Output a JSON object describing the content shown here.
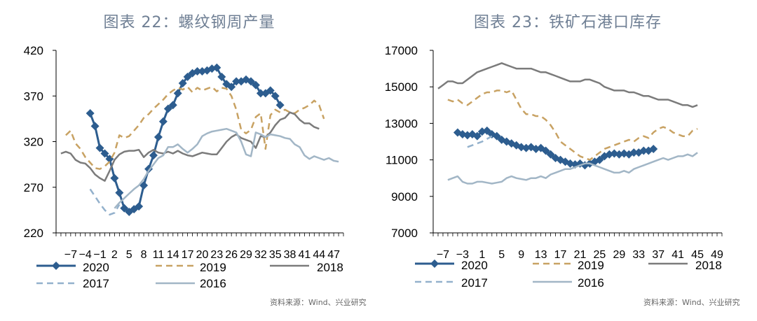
{
  "chart_data": [
    {
      "type": "line",
      "title": "图表 22：螺纹钢周产量",
      "source": "资料来源：Wind、兴业研究",
      "ylim": [
        220,
        420
      ],
      "yticks": [
        220,
        270,
        320,
        370,
        420
      ],
      "xlim": [
        -10,
        49
      ],
      "xticks": [
        -7,
        -4,
        -1,
        2,
        5,
        8,
        11,
        14,
        17,
        20,
        23,
        26,
        29,
        32,
        35,
        38,
        41,
        44,
        47
      ],
      "xtick_labels": [
        "−7",
        "−4",
        "−1",
        "2",
        "5",
        "8",
        "11",
        "14",
        "17",
        "20",
        "23",
        "26",
        "29",
        "32",
        "35",
        "38",
        "41",
        "44",
        "47"
      ],
      "legend_position": "bottom",
      "series": [
        {
          "name": "2020",
          "color": "#2d5d8f",
          "style": "solid-diamond",
          "x": [
            -3,
            -2,
            -1,
            0,
            1,
            2,
            3,
            4,
            5,
            6,
            7,
            8,
            9,
            10,
            11,
            12,
            13,
            14,
            15,
            16,
            17,
            18,
            19,
            20,
            21,
            22,
            23,
            24,
            25,
            26,
            27,
            28,
            29,
            30,
            31,
            32,
            33,
            34,
            35,
            36
          ],
          "y": [
            351,
            337,
            313,
            307,
            301,
            280,
            264,
            247,
            243,
            246,
            249,
            272,
            290,
            305,
            325,
            342,
            356,
            360,
            373,
            384,
            391,
            395,
            397,
            397,
            398,
            400,
            401,
            391,
            383,
            380,
            386,
            386,
            388,
            386,
            382,
            373,
            373,
            376,
            370,
            360
          ]
        },
        {
          "name": "2019",
          "color": "#c8a263",
          "style": "dashed",
          "x": [
            -8,
            -7,
            -6,
            -5,
            -4,
            -3,
            -2,
            -1,
            0,
            1,
            2,
            3,
            4,
            5,
            6,
            7,
            8,
            9,
            10,
            11,
            12,
            13,
            14,
            15,
            16,
            17,
            18,
            19,
            20,
            21,
            22,
            23,
            24,
            25,
            26,
            27,
            28,
            29,
            30,
            31,
            32,
            33,
            34,
            35,
            36,
            37,
            38,
            39,
            40,
            41,
            42,
            43,
            44,
            45
          ],
          "y": [
            327,
            332,
            318,
            312,
            303,
            297,
            291,
            290,
            293,
            298,
            308,
            327,
            324,
            326,
            332,
            338,
            346,
            350,
            356,
            361,
            366,
            372,
            376,
            379,
            377,
            380,
            374,
            379,
            376,
            378,
            380,
            375,
            379,
            378,
            370,
            355,
            333,
            329,
            333,
            347,
            351,
            312,
            349,
            355,
            352,
            355,
            352,
            351,
            355,
            357,
            360,
            365,
            360,
            345
          ]
        },
        {
          "name": "2018",
          "color": "#7b7b7b",
          "style": "solid",
          "x": [
            -9,
            -8,
            -7,
            -6,
            -5,
            -4,
            -3,
            -2,
            -1,
            0,
            1,
            2,
            3,
            4,
            5,
            6,
            7,
            8,
            9,
            10,
            11,
            12,
            13,
            14,
            15,
            16,
            17,
            18,
            19,
            20,
            21,
            22,
            23,
            24,
            25,
            26,
            27,
            28,
            29,
            30,
            31,
            32,
            33,
            34,
            35,
            36,
            37,
            38,
            39,
            40,
            41,
            42,
            43,
            44
          ],
          "y": [
            307,
            309,
            307,
            300,
            297,
            296,
            291,
            284,
            280,
            277,
            288,
            300,
            306,
            309,
            310,
            310,
            311,
            303,
            308,
            311,
            308,
            307,
            309,
            307,
            310,
            307,
            305,
            304,
            306,
            308,
            307,
            306,
            306,
            313,
            320,
            325,
            328,
            324,
            322,
            320,
            313,
            326,
            325,
            330,
            338,
            344,
            346,
            352,
            350,
            344,
            340,
            340,
            336,
            334
          ]
        },
        {
          "name": "2017",
          "color": "#93b1cc",
          "style": "dashed",
          "x": [
            -3,
            -2,
            -1,
            0,
            1,
            2,
            3
          ],
          "y": [
            268,
            260,
            252,
            245,
            240,
            242,
            251
          ]
        },
        {
          "name": "2016",
          "color": "#a2b6c6",
          "style": "solid",
          "x": [
            2,
            3,
            4,
            5,
            6,
            7,
            8,
            9,
            10,
            11,
            12,
            13,
            14,
            15,
            16,
            17,
            18,
            19,
            20,
            21,
            22,
            23,
            24,
            25,
            26,
            27,
            28,
            29,
            30,
            31,
            32,
            33,
            34,
            35,
            36,
            37,
            38,
            39,
            40,
            41,
            42,
            43,
            44,
            45,
            46,
            47,
            48
          ],
          "y": [
            247,
            253,
            258,
            263,
            268,
            272,
            279,
            288,
            295,
            302,
            305,
            314,
            314,
            317,
            312,
            308,
            312,
            317,
            326,
            329,
            331,
            332,
            333,
            334,
            332,
            330,
            320,
            306,
            304,
            330,
            328,
            325,
            328,
            327,
            326,
            324,
            323,
            317,
            314,
            305,
            301,
            304,
            302,
            300,
            302,
            299,
            298
          ]
        }
      ]
    },
    {
      "type": "line",
      "title": "图表 23：铁矿石港口库存",
      "source": "资料来源：Wind、兴业研究",
      "ylim": [
        7000,
        17000
      ],
      "yticks": [
        7000,
        9000,
        11000,
        13000,
        15000,
        17000
      ],
      "xlim": [
        -9,
        50
      ],
      "xticks": [
        -7,
        -3,
        1,
        5,
        9,
        13,
        17,
        21,
        25,
        29,
        33,
        37,
        41,
        45,
        49
      ],
      "xtick_labels": [
        "−7",
        "−3",
        "1",
        "5",
        "9",
        "13",
        "17",
        "21",
        "25",
        "29",
        "33",
        "37",
        "41",
        "45",
        "49"
      ],
      "legend_position": "bottom",
      "series": [
        {
          "name": "2020",
          "color": "#2d5d8f",
          "style": "solid-diamond",
          "x": [
            -4,
            -3,
            -2,
            -1,
            0,
            1,
            2,
            3,
            4,
            5,
            6,
            7,
            8,
            9,
            10,
            11,
            12,
            13,
            14,
            15,
            16,
            17,
            18,
            19,
            20,
            21,
            22,
            23,
            24,
            25,
            26,
            27,
            28,
            29,
            30,
            31,
            32,
            33,
            34,
            35,
            36
          ],
          "y": [
            12500,
            12400,
            12350,
            12400,
            12300,
            12550,
            12600,
            12400,
            12300,
            12100,
            12000,
            11900,
            11800,
            11700,
            11650,
            11700,
            11600,
            11650,
            11500,
            11300,
            11100,
            11000,
            10900,
            10800,
            10750,
            10800,
            10700,
            10800,
            10900,
            11000,
            11200,
            11300,
            11350,
            11300,
            11350,
            11300,
            11400,
            11400,
            11500,
            11500,
            11600
          ]
        },
        {
          "name": "2019",
          "color": "#c8a263",
          "style": "dashed",
          "x": [
            -6,
            -5,
            -4,
            -3,
            -2,
            -1,
            0,
            1,
            2,
            3,
            4,
            5,
            6,
            7,
            8,
            9,
            10,
            11,
            12,
            13,
            14,
            15,
            16,
            17,
            18,
            19,
            20,
            21,
            22,
            23,
            24,
            25,
            26,
            27,
            28,
            29,
            30,
            31,
            32,
            33,
            34,
            35,
            36,
            37,
            38,
            39,
            40,
            41,
            42,
            43,
            44,
            45
          ],
          "y": [
            14300,
            14200,
            14300,
            14100,
            14000,
            14200,
            14400,
            14600,
            14700,
            14700,
            14800,
            14800,
            14700,
            14800,
            14300,
            13800,
            13500,
            13500,
            13400,
            13400,
            13200,
            12900,
            12500,
            12000,
            11800,
            11600,
            11400,
            11200,
            11100,
            11000,
            11200,
            11400,
            11600,
            11700,
            11800,
            11900,
            12000,
            12100,
            12000,
            12200,
            12300,
            12200,
            12500,
            12700,
            12800,
            12700,
            12500,
            12400,
            12300,
            12300,
            12600,
            12700
          ]
        },
        {
          "name": "2018",
          "color": "#7b7b7b",
          "style": "solid",
          "x": [
            -8,
            -7,
            -6,
            -5,
            -4,
            -3,
            -2,
            -1,
            0,
            1,
            2,
            3,
            4,
            5,
            6,
            7,
            8,
            9,
            10,
            11,
            12,
            13,
            14,
            15,
            16,
            17,
            18,
            19,
            20,
            21,
            22,
            23,
            24,
            25,
            26,
            27,
            28,
            29,
            30,
            31,
            32,
            33,
            34,
            35,
            36,
            37,
            38,
            39,
            40,
            41,
            42,
            43,
            44,
            45
          ],
          "y": [
            14900,
            15100,
            15300,
            15300,
            15200,
            15200,
            15400,
            15600,
            15800,
            15900,
            16000,
            16100,
            16200,
            16300,
            16200,
            16100,
            16000,
            16000,
            16000,
            16000,
            15900,
            15800,
            15800,
            15700,
            15600,
            15500,
            15400,
            15300,
            15300,
            15300,
            15400,
            15400,
            15300,
            15200,
            15000,
            14900,
            14800,
            14800,
            14800,
            14700,
            14700,
            14600,
            14500,
            14500,
            14400,
            14300,
            14300,
            14300,
            14200,
            14100,
            14000,
            14000,
            13900,
            14000
          ]
        },
        {
          "name": "2017",
          "color": "#93b1cc",
          "style": "dashed",
          "x": [
            -2,
            -1,
            0,
            1,
            2,
            3
          ],
          "y": [
            11700,
            11800,
            11900,
            12000,
            12150,
            12300
          ]
        },
        {
          "name": "2016",
          "color": "#a2b6c6",
          "style": "solid",
          "x": [
            -6,
            -5,
            -4,
            -3,
            -2,
            -1,
            0,
            1,
            2,
            3,
            4,
            5,
            6,
            7,
            8,
            9,
            10,
            11,
            12,
            13,
            14,
            15,
            16,
            17,
            18,
            19,
            20,
            21,
            22,
            23,
            24,
            25,
            26,
            27,
            28,
            29,
            30,
            31,
            32,
            33,
            34,
            35,
            36,
            37,
            38,
            39,
            40,
            41,
            42,
            43,
            44,
            45
          ],
          "y": [
            9900,
            10000,
            10100,
            9800,
            9700,
            9700,
            9800,
            9800,
            9750,
            9700,
            9750,
            9800,
            10000,
            10100,
            10000,
            9950,
            9900,
            10000,
            10000,
            10100,
            10000,
            10200,
            10300,
            10400,
            10500,
            10500,
            10600,
            10700,
            10800,
            10800,
            10700,
            10600,
            10500,
            10400,
            10300,
            10300,
            10400,
            10300,
            10500,
            10600,
            10700,
            10800,
            10900,
            11000,
            11100,
            11000,
            11100,
            11200,
            11200,
            11300,
            11200,
            11400
          ]
        }
      ]
    }
  ]
}
